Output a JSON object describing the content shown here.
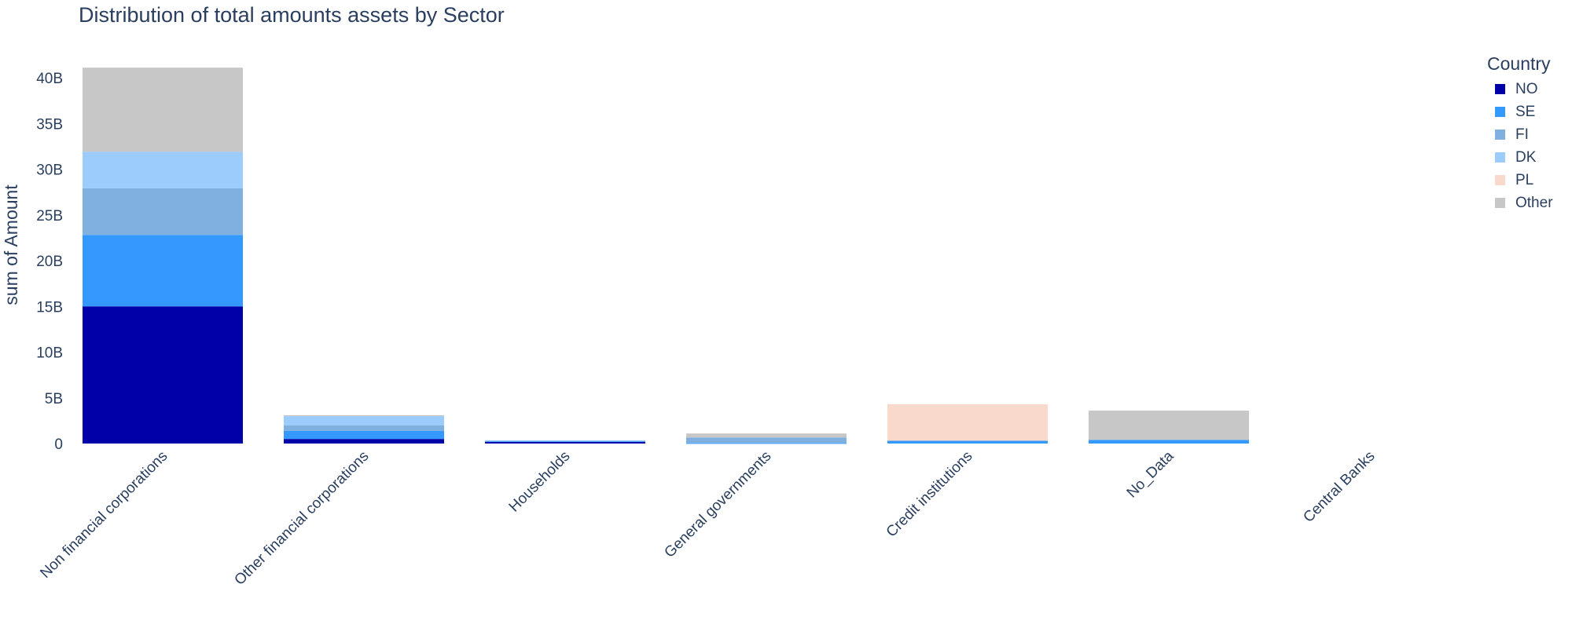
{
  "chart_data": {
    "type": "bar",
    "stacked": true,
    "title": "Distribution of total amounts assets by Sector",
    "xlabel": "",
    "ylabel": "sum of Amount",
    "ylim": [
      0,
      42.5
    ],
    "y_unit_suffix": "B",
    "yticks": [
      0,
      5,
      10,
      15,
      20,
      25,
      30,
      35,
      40
    ],
    "ytick_labels": [
      "0",
      "5B",
      "10B",
      "15B",
      "20B",
      "25B",
      "30B",
      "35B",
      "40B"
    ],
    "categories": [
      "Non financial corporations",
      "Other financial corporations",
      "Households",
      "General governments",
      "Credit institutions",
      "No_Data",
      "Central Banks"
    ],
    "legend_title": "Country",
    "legend_position": "top-right",
    "grid": false,
    "series": [
      {
        "name": "NO",
        "color": "#0000a8",
        "values": [
          15.0,
          0.5,
          0.2,
          0.0,
          0.0,
          0.0,
          0.0
        ]
      },
      {
        "name": "SE",
        "color": "#3399ff",
        "values": [
          7.8,
          0.9,
          0.05,
          0.05,
          0.3,
          0.4,
          0.0
        ]
      },
      {
        "name": "FI",
        "color": "#7fb0e0",
        "values": [
          5.1,
          0.6,
          0.05,
          0.6,
          0.0,
          0.0,
          0.0
        ]
      },
      {
        "name": "DK",
        "color": "#9cccfc",
        "values": [
          4.0,
          1.0,
          0.05,
          0.0,
          0.0,
          0.0,
          0.0
        ]
      },
      {
        "name": "PL",
        "color": "#f9d9cb",
        "values": [
          0.0,
          0.0,
          0.0,
          0.0,
          4.0,
          0.0,
          0.0
        ]
      },
      {
        "name": "Other",
        "color": "#c8c7c8",
        "values": [
          9.2,
          0.1,
          0.0,
          0.45,
          0.0,
          3.2,
          0.0
        ]
      }
    ]
  }
}
